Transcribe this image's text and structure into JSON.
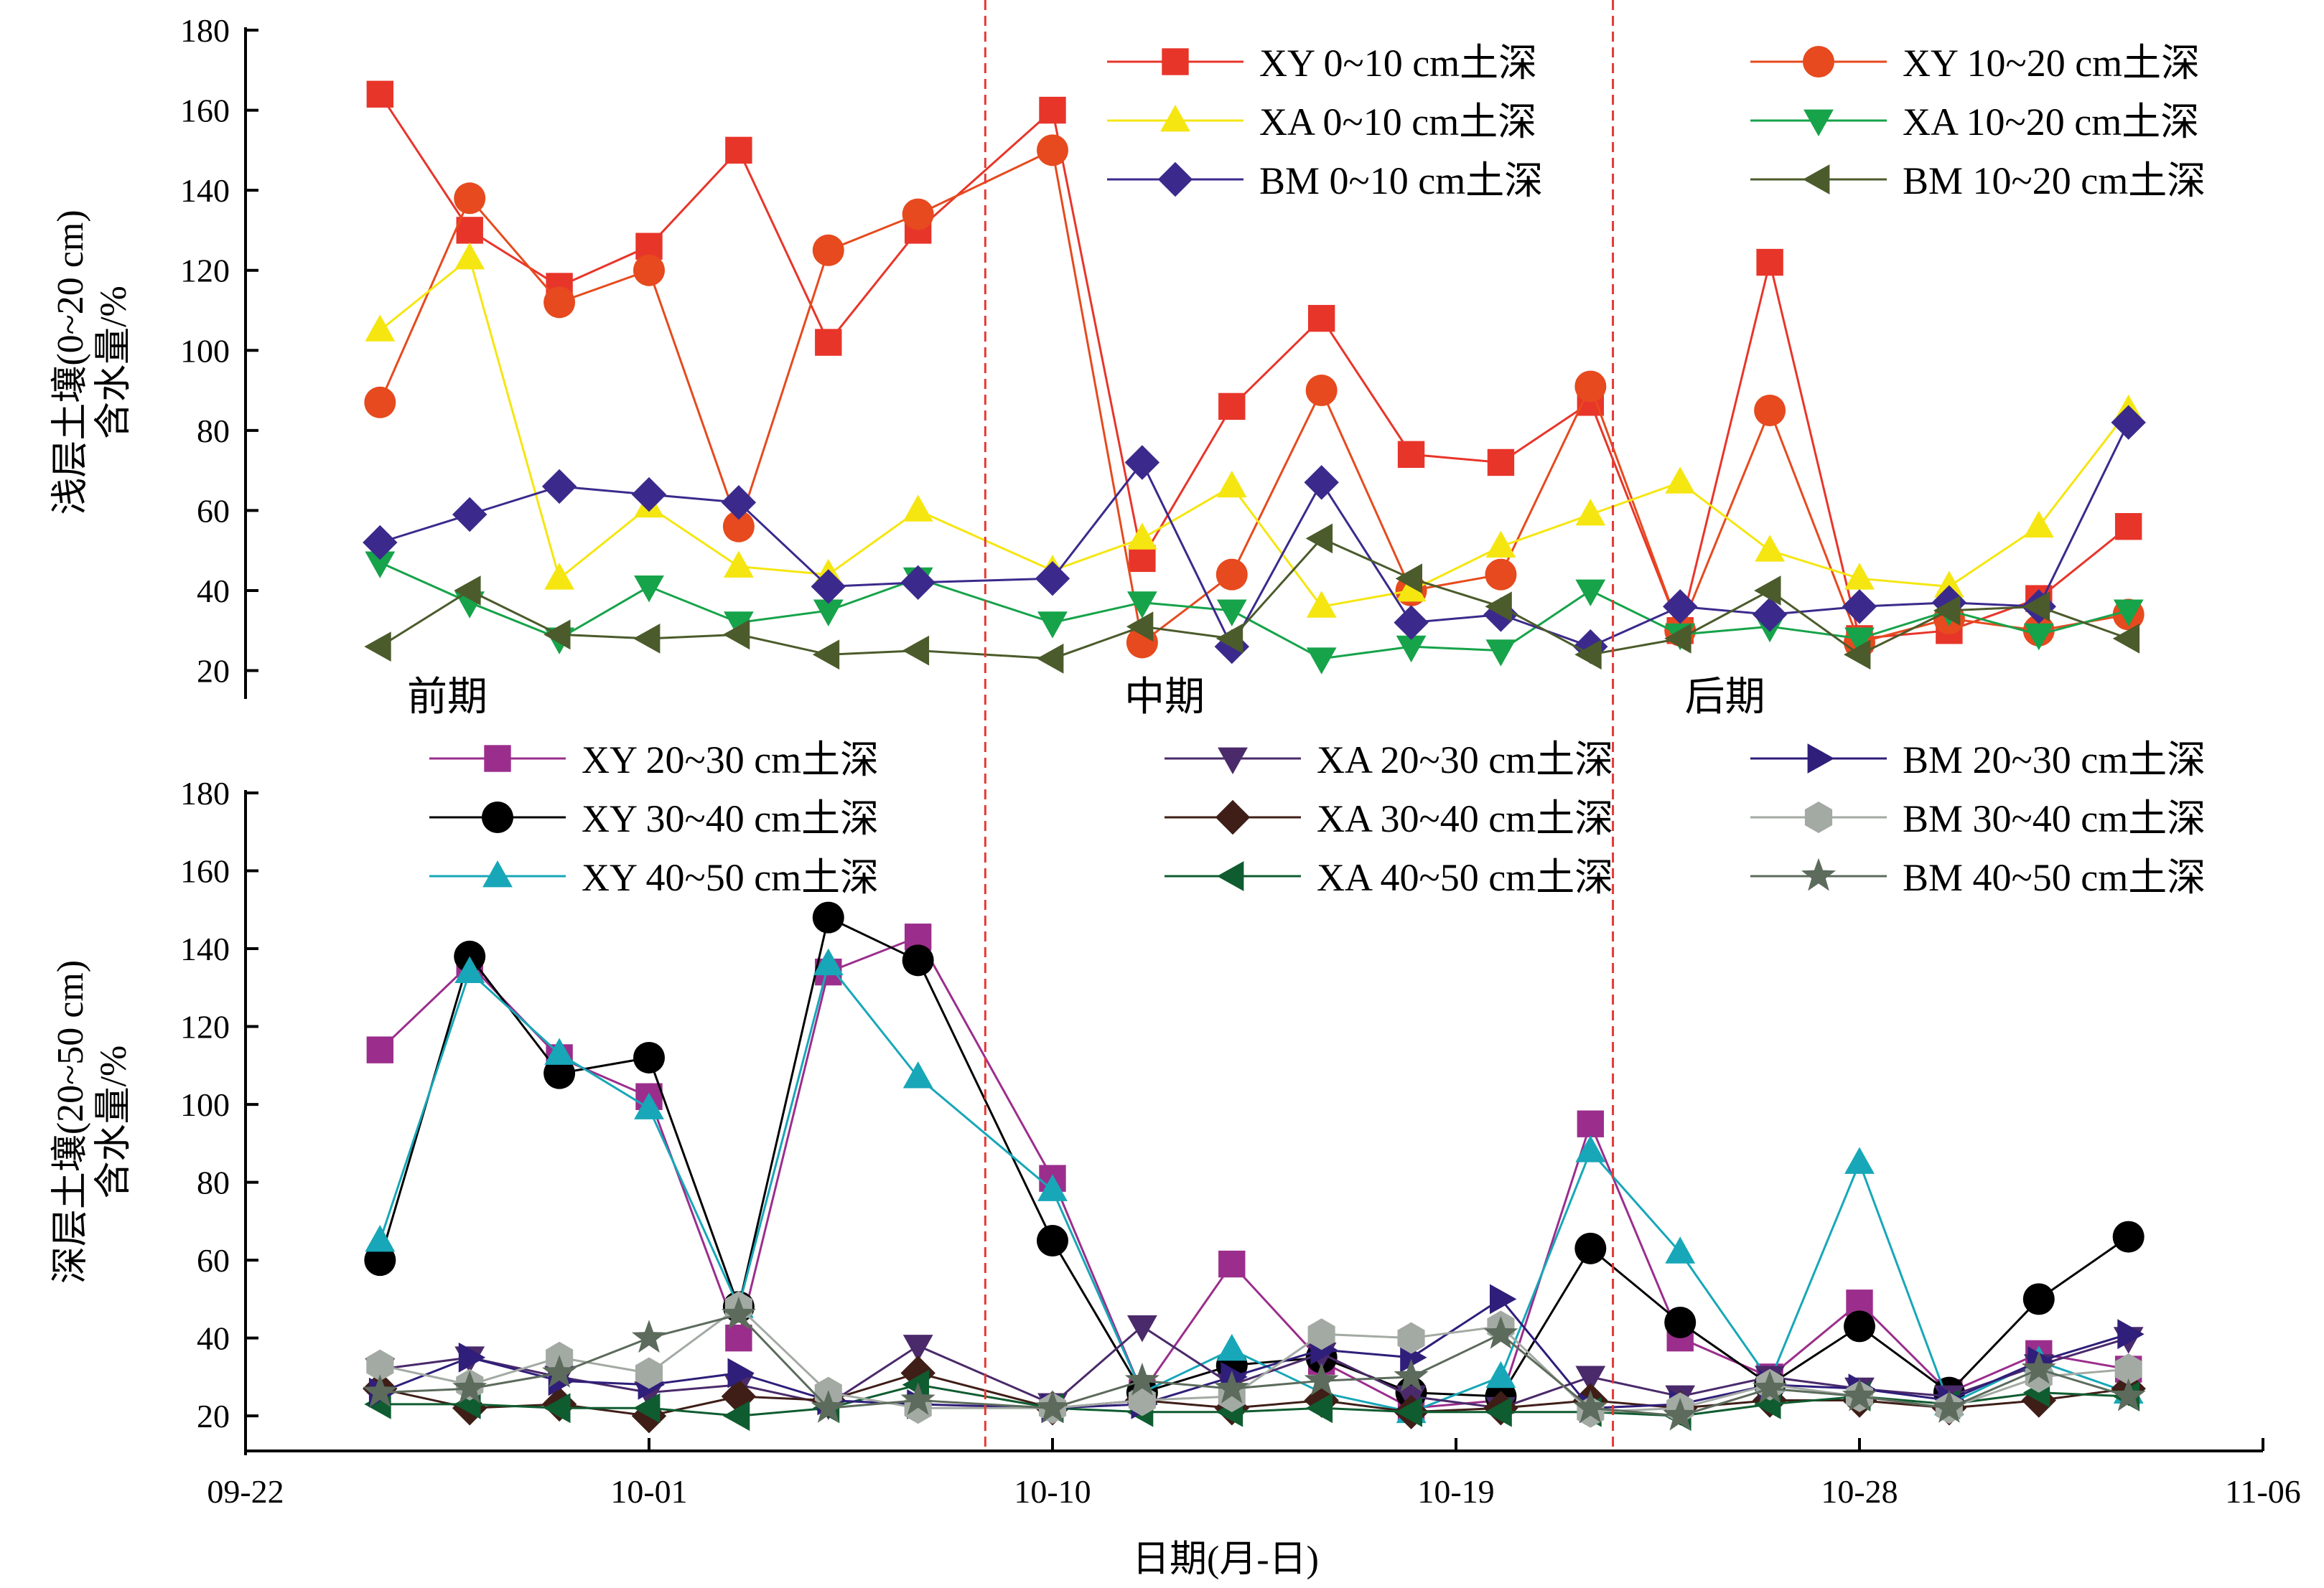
{
  "chart_data": [
    {
      "type": "line",
      "panel": "top",
      "ylabel": "浅层土壤(0~20 cm)含水量/%",
      "ylabel_lines": [
        "浅层土壤(0~20 cm)",
        "含水量/%"
      ],
      "ylim": [
        14,
        180
      ],
      "yticks": [
        20,
        40,
        60,
        80,
        100,
        120,
        140,
        160,
        180
      ],
      "period_labels": [
        {
          "text": "前期",
          "x": 4.5
        },
        {
          "text": "中期",
          "x": 20.5
        },
        {
          "text": "后期",
          "x": 33
        }
      ],
      "legend_position": "top-right",
      "series": [
        {
          "name": "XY 0~10 cm土深",
          "color": "#E8352A",
          "marker": "square",
          "x": [
            3,
            5,
            7,
            9,
            11,
            13,
            15,
            18,
            20,
            22,
            24,
            26,
            28,
            30,
            32,
            34,
            36,
            38,
            40,
            42
          ],
          "y": [
            164,
            130,
            116,
            126,
            150,
            102,
            130,
            160,
            48,
            86,
            108,
            74,
            72,
            87,
            30,
            122,
            28,
            30,
            38,
            56
          ]
        },
        {
          "name": "XY 10~20 cm土深",
          "color": "#E64A1E",
          "marker": "circle",
          "x": [
            3,
            5,
            7,
            9,
            11,
            13,
            15,
            18,
            20,
            22,
            24,
            26,
            28,
            30,
            32,
            34,
            36,
            38,
            40,
            42
          ],
          "y": [
            87,
            138,
            112,
            120,
            56,
            125,
            134,
            150,
            27,
            44,
            90,
            40,
            44,
            91,
            30,
            85,
            27,
            33,
            30,
            34
          ]
        },
        {
          "name": "XA 0~10 cm土深",
          "color": "#F5E611",
          "marker": "triangle-up",
          "x": [
            3,
            5,
            7,
            9,
            11,
            13,
            15,
            18,
            20,
            22,
            24,
            26,
            28,
            30,
            32,
            34,
            36,
            38,
            40,
            42
          ],
          "y": [
            105,
            123,
            43,
            61,
            46,
            44,
            60,
            45,
            53,
            66,
            36,
            40,
            51,
            59,
            67,
            50,
            43,
            41,
            56,
            85
          ]
        },
        {
          "name": "XA 10~20 cm土深",
          "color": "#16A34A",
          "marker": "triangle-down",
          "x": [
            3,
            5,
            7,
            9,
            11,
            13,
            15,
            18,
            20,
            22,
            24,
            26,
            28,
            30,
            32,
            34,
            36,
            38,
            40,
            42
          ],
          "y": [
            47,
            37,
            28,
            41,
            32,
            35,
            43,
            32,
            37,
            35,
            23,
            26,
            25,
            40,
            29,
            31,
            28,
            35,
            29,
            35
          ]
        },
        {
          "name": "BM 0~10 cm土深",
          "color": "#3B2A8C",
          "marker": "diamond",
          "x": [
            3,
            5,
            7,
            9,
            11,
            13,
            15,
            18,
            20,
            22,
            24,
            26,
            28,
            30,
            32,
            34,
            36,
            38,
            40,
            42
          ],
          "y": [
            52,
            59,
            66,
            64,
            62,
            41,
            42,
            43,
            72,
            26,
            67,
            32,
            34,
            26,
            36,
            34,
            36,
            37,
            36,
            82
          ]
        },
        {
          "name": "BM 10~20 cm土深",
          "color": "#4B5B2B",
          "marker": "triangle-left",
          "x": [
            3,
            5,
            7,
            9,
            11,
            13,
            15,
            18,
            20,
            22,
            24,
            26,
            28,
            30,
            32,
            34,
            36,
            38,
            40,
            42
          ],
          "y": [
            26,
            40,
            29,
            28,
            29,
            24,
            25,
            23,
            31,
            28,
            53,
            43,
            36,
            24,
            28,
            40,
            24,
            35,
            36,
            28
          ]
        }
      ]
    },
    {
      "type": "line",
      "panel": "bottom",
      "xlabel": "日期(月-日)",
      "ylabel": "深层土壤(20~50 cm)含水量/%",
      "ylabel_lines": [
        "深层土壤(20~50 cm)",
        "含水量/%"
      ],
      "ylim": [
        11,
        180
      ],
      "yticks": [
        20,
        40,
        60,
        80,
        100,
        120,
        140,
        160,
        180
      ],
      "xlim": [
        0,
        45
      ],
      "xticks": [
        0,
        9,
        18,
        27,
        36,
        45
      ],
      "xticklabels": [
        "09-22",
        "10-01",
        "10-10",
        "10-19",
        "10-28",
        "11-06"
      ],
      "period_dividers": [
        16.5,
        30.5
      ],
      "legend_position": "top",
      "series": [
        {
          "name": "XY 20~30 cm土深",
          "color": "#9B2E8C",
          "marker": "square",
          "x": [
            3,
            5,
            7,
            9,
            11,
            13,
            15,
            18,
            20,
            22,
            24,
            26,
            28,
            30,
            32,
            34,
            36,
            38,
            40,
            42
          ],
          "y": [
            114,
            136,
            112,
            102,
            40,
            134,
            143,
            81,
            26,
            59,
            34,
            22,
            24,
            95,
            40,
            30,
            49,
            26,
            36,
            32
          ]
        },
        {
          "name": "XY 30~40 cm土深",
          "color": "#000000",
          "marker": "circle",
          "x": [
            3,
            5,
            7,
            9,
            11,
            13,
            15,
            18,
            20,
            22,
            24,
            26,
            28,
            30,
            32,
            34,
            36,
            38,
            40,
            42
          ],
          "y": [
            60,
            138,
            108,
            112,
            48,
            148,
            137,
            65,
            26,
            33,
            35,
            26,
            25,
            63,
            44,
            28,
            43,
            26,
            50,
            66
          ]
        },
        {
          "name": "XY 40~50 cm土深",
          "color": "#17A7B8",
          "marker": "triangle-up",
          "x": [
            3,
            5,
            7,
            9,
            11,
            13,
            15,
            18,
            20,
            22,
            24,
            26,
            28,
            30,
            32,
            34,
            36,
            38,
            40,
            42
          ],
          "y": [
            65,
            134,
            113,
            99,
            48,
            136,
            107,
            78,
            26,
            37,
            26,
            21,
            30,
            88,
            62,
            29,
            85,
            23,
            34,
            26
          ]
        },
        {
          "name": "XA 20~30 cm土深",
          "color": "#4A2A6A",
          "marker": "triangle-down",
          "x": [
            3,
            5,
            7,
            9,
            11,
            13,
            15,
            18,
            20,
            22,
            24,
            26,
            28,
            30,
            32,
            34,
            36,
            38,
            40,
            42
          ],
          "y": [
            32,
            35,
            30,
            26,
            28,
            23,
            38,
            23,
            43,
            28,
            36,
            25,
            22,
            30,
            25,
            30,
            27,
            25,
            33,
            40
          ]
        },
        {
          "name": "XA 30~40 cm土深",
          "color": "#3F1E17",
          "marker": "diamond",
          "x": [
            3,
            5,
            7,
            9,
            11,
            13,
            15,
            18,
            20,
            22,
            24,
            26,
            28,
            30,
            32,
            34,
            36,
            38,
            40,
            42
          ],
          "y": [
            27,
            22,
            23,
            20,
            25,
            24,
            31,
            22,
            24,
            22,
            24,
            21,
            22,
            24,
            22,
            24,
            24,
            22,
            24,
            27
          ]
        },
        {
          "name": "XA 40~50 cm土深",
          "color": "#0F5C30",
          "marker": "triangle-left",
          "x": [
            3,
            5,
            7,
            9,
            11,
            13,
            15,
            18,
            20,
            22,
            24,
            26,
            28,
            30,
            32,
            34,
            36,
            38,
            40,
            42
          ],
          "y": [
            23,
            23,
            22,
            22,
            20,
            22,
            28,
            22,
            21,
            21,
            22,
            21,
            21,
            21,
            20,
            23,
            25,
            23,
            26,
            25
          ]
        },
        {
          "name": "BM 20~30 cm土深",
          "color": "#2F1E7A",
          "marker": "triangle-right",
          "x": [
            3,
            5,
            7,
            9,
            11,
            13,
            15,
            18,
            20,
            22,
            24,
            26,
            28,
            30,
            32,
            34,
            36,
            38,
            40,
            42
          ],
          "y": [
            26,
            35,
            29,
            28,
            31,
            24,
            23,
            22,
            23,
            30,
            37,
            35,
            50,
            22,
            23,
            28,
            27,
            24,
            34,
            41
          ]
        },
        {
          "name": "BM 30~40 cm土深",
          "color": "#A3AAA3",
          "marker": "hexagon",
          "x": [
            3,
            5,
            7,
            9,
            11,
            13,
            15,
            18,
            20,
            22,
            24,
            26,
            28,
            30,
            32,
            34,
            36,
            38,
            40,
            42
          ],
          "y": [
            33,
            28,
            35,
            31,
            48,
            26,
            22,
            22,
            24,
            25,
            41,
            40,
            43,
            21,
            22,
            28,
            25,
            22,
            30,
            32
          ]
        },
        {
          "name": "BM 40~50 cm土深",
          "color": "#5C6B5C",
          "marker": "star",
          "x": [
            3,
            5,
            7,
            9,
            11,
            13,
            15,
            18,
            20,
            22,
            24,
            26,
            28,
            30,
            32,
            34,
            36,
            38,
            40,
            42
          ],
          "y": [
            26,
            27,
            31,
            40,
            46,
            22,
            24,
            22,
            29,
            27,
            29,
            30,
            41,
            22,
            20,
            27,
            25,
            22,
            32,
            25
          ]
        }
      ]
    }
  ]
}
